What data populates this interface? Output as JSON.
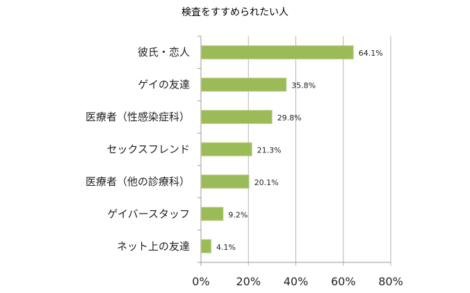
{
  "chart_data": {
    "type": "bar",
    "orientation": "horizontal",
    "title": "検査をすすめられたい人",
    "categories": [
      "彼氏・恋人",
      "ゲイの友達",
      "医療者（性感染症科）",
      "セックスフレンド",
      "医療者（他の診療科）",
      "ゲイバースタッフ",
      "ネット上の友達"
    ],
    "values": [
      64.1,
      35.8,
      29.8,
      21.3,
      20.1,
      9.2,
      4.1
    ],
    "value_labels": [
      "64.1%",
      "35.8%",
      "29.8%",
      "21.3%",
      "20.1%",
      "9.2%",
      "4.1%"
    ],
    "xlim": [
      0,
      80
    ],
    "xticks": [
      0,
      20,
      40,
      60,
      80
    ],
    "xtick_labels": [
      "0%",
      "20%",
      "40%",
      "60%",
      "80%"
    ],
    "xlabel": "",
    "ylabel": "",
    "grid": "vertical",
    "legend": "none",
    "bar_color": "#9BBB59"
  }
}
